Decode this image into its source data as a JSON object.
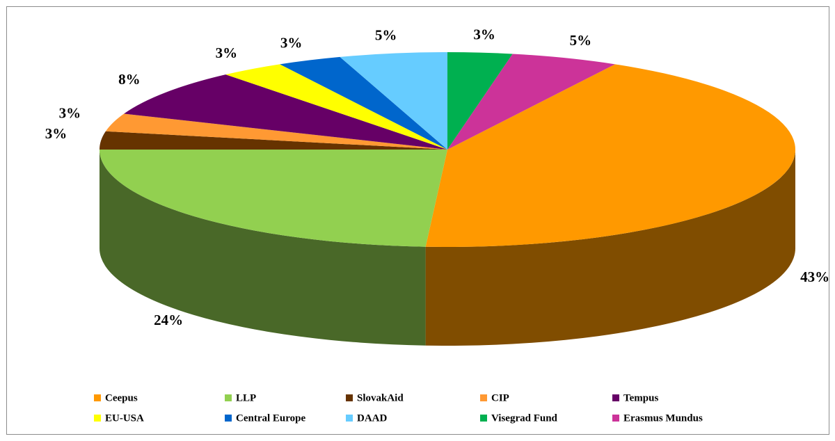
{
  "chart_data": {
    "type": "pie",
    "categories": [
      "Ceepus",
      "LLP",
      "SlovakAid",
      "CIP",
      "Tempus",
      "EU-USA",
      "Central Europe",
      "DAAD",
      "Visegrad Fund",
      "Erasmus Mundus"
    ],
    "values": [
      43,
      24,
      3,
      3,
      8,
      3,
      3,
      5,
      3,
      5
    ],
    "value_labels": [
      "43%",
      "24%",
      "3%",
      "3%",
      "8%",
      "3%",
      "3%",
      "5%",
      "3%",
      "5%"
    ],
    "colors": [
      "#ff9900",
      "#92d050",
      "#663300",
      "#ff9933",
      "#660066",
      "#ffff00",
      "#0066cc",
      "#66ccff",
      "#00b050",
      "#cc3399"
    ],
    "legend": "bottom"
  }
}
